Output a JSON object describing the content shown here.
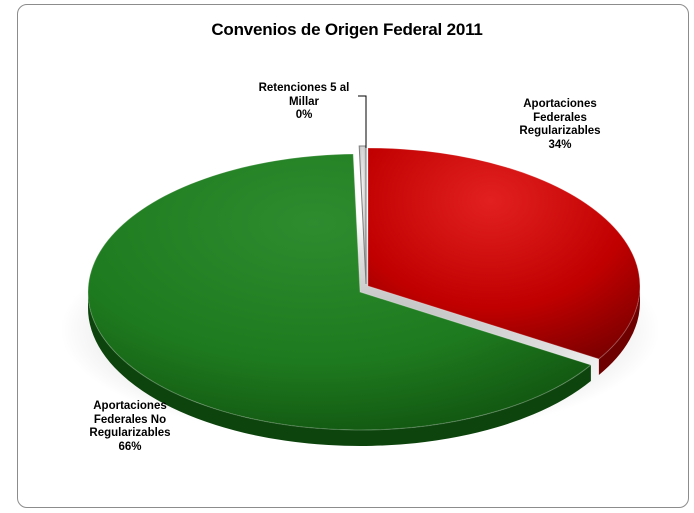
{
  "chart_data": {
    "type": "pie",
    "title": "Convenios de Origen Federal 2011",
    "slices": [
      {
        "label_lines": [
          "Aportaciones",
          "Federales",
          "Regularizables"
        ],
        "percent_label": "34%",
        "value": 34,
        "color": "#c00000"
      },
      {
        "label_lines": [
          "Aportaciones",
          "Federales No",
          "Regularizables"
        ],
        "percent_label": "66%",
        "value": 66,
        "color": "#1e7a1e"
      },
      {
        "label_lines": [
          "Retenciones 5 al",
          "Millar"
        ],
        "percent_label": "0%",
        "value": 0.4,
        "color": "#d9d9d9"
      }
    ],
    "legend": "none",
    "style": "3d-exploded"
  }
}
